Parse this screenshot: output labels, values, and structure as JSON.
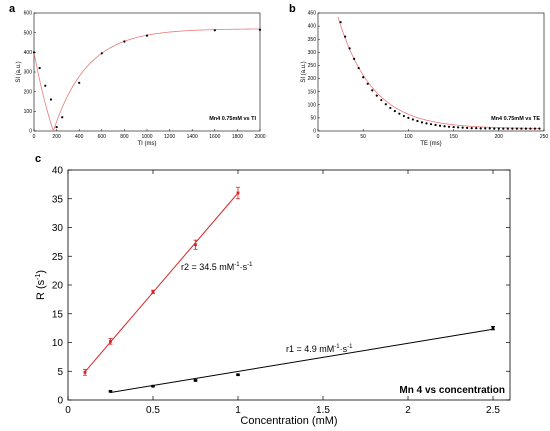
{
  "panel_labels": {
    "a": "a",
    "b": "b",
    "c": "c"
  },
  "chart_data": [
    {
      "type": "scatter",
      "panel": "a",
      "xlabel": "TI (ms)",
      "ylabel": "SI (a.u.)",
      "annotation": "Mn4 0.75mM vs TI",
      "xlim": [
        0,
        2000
      ],
      "ylim": [
        0,
        600
      ],
      "xticks": [
        "0",
        "200",
        "400",
        "600",
        "800",
        "1000",
        "1200",
        "1400",
        "1600",
        "1800",
        "2000"
      ],
      "yticks": [
        "0",
        "100",
        "200",
        "300",
        "400",
        "500",
        "600"
      ],
      "points": {
        "x": [
          0,
          50,
          100,
          150,
          200,
          250,
          400,
          600,
          800,
          1000,
          1600,
          2000
        ],
        "y": [
          400,
          320,
          230,
          160,
          20,
          70,
          245,
          395,
          455,
          485,
          512,
          515
        ]
      },
      "fit_color": "#e87b7b"
    },
    {
      "type": "scatter",
      "panel": "b",
      "xlabel": "TE (ms)",
      "ylabel": "SI (a.u.)",
      "annotation": "Mn4 0.75mM vs TE",
      "xlim": [
        0,
        250
      ],
      "ylim": [
        0,
        450
      ],
      "xticks": [
        "0",
        "50",
        "100",
        "150",
        "200",
        "250"
      ],
      "yticks": [
        "0",
        "50",
        "100",
        "150",
        "200",
        "250",
        "300",
        "350",
        "400",
        "450"
      ],
      "points": {
        "x": [
          25,
          30,
          35,
          40,
          45,
          50,
          55,
          60,
          65,
          70,
          75,
          80,
          85,
          90,
          95,
          100,
          105,
          110,
          115,
          120,
          125,
          130,
          135,
          140,
          145,
          150,
          155,
          160,
          165,
          170,
          175,
          180,
          185,
          190,
          195,
          200,
          205,
          210,
          215,
          220,
          225,
          230,
          235,
          240,
          245
        ],
        "y": [
          415,
          360,
          315,
          275,
          240,
          205,
          180,
          155,
          135,
          118,
          102,
          88,
          76,
          66,
          57,
          50,
          44,
          38,
          33,
          29,
          26,
          23,
          20,
          18,
          16,
          15,
          14,
          13,
          12,
          11,
          11,
          10,
          10,
          10,
          9,
          9,
          9,
          9,
          9,
          9,
          9,
          9,
          9,
          9,
          9
        ]
      },
      "fit_color": "#e87b7b"
    },
    {
      "type": "line",
      "panel": "c",
      "xlabel": "Concentration (mM)",
      "ylabel": "R (s",
      "ylabel_sup": "-1",
      "ylabel_end": ")",
      "annotation": "Mn 4 vs concentration",
      "xlim": [
        0,
        2.6
      ],
      "ylim": [
        0,
        40
      ],
      "xticks": [
        "0",
        "0.5",
        "1",
        "1.5",
        "2",
        "2.5"
      ],
      "yticks": [
        "0",
        "5",
        "10",
        "15",
        "20",
        "25",
        "30",
        "35",
        "40"
      ],
      "series": [
        {
          "name": "r2",
          "label_pre": "r2 = 34.5 mM",
          "label_mid": "·s",
          "color": "#d62728",
          "x": [
            0.1,
            0.25,
            0.5,
            0.75,
            1.0
          ],
          "y": [
            4.8,
            10.2,
            18.8,
            27.0,
            36.0
          ],
          "err": [
            0.5,
            0.5,
            0.3,
            0.8,
            1.0
          ],
          "fit": {
            "x": [
              0.1,
              1.0
            ],
            "y": [
              4.9,
              36.0
            ]
          }
        },
        {
          "name": "r1",
          "label_pre": "r1 = 4.9 mM",
          "label_mid": "·s",
          "color": "#000000",
          "x": [
            0.25,
            0.5,
            0.75,
            1.0,
            2.5
          ],
          "y": [
            1.5,
            2.4,
            3.4,
            4.4,
            12.5
          ],
          "err": [
            0.1,
            0.1,
            0.1,
            0.1,
            0.3
          ],
          "fit": {
            "x": [
              0.25,
              2.5
            ],
            "y": [
              1.3,
              12.3
            ]
          }
        }
      ],
      "unit_sup": "-1"
    }
  ]
}
